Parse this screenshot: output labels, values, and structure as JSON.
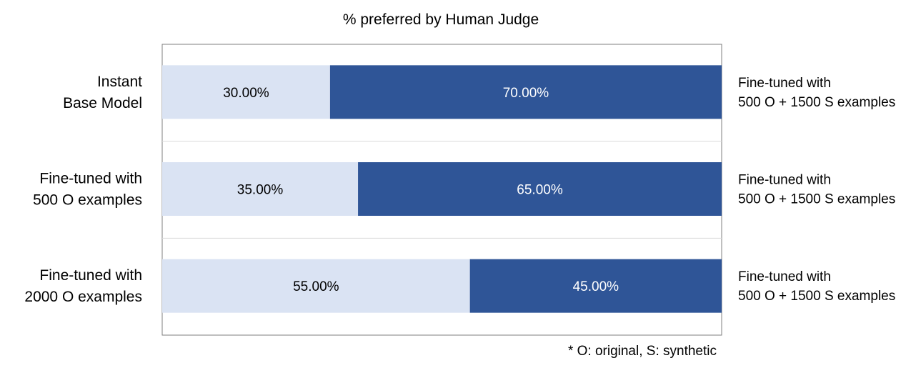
{
  "chart_data": {
    "type": "bar",
    "stacked": true,
    "orientation": "horizontal",
    "percent_scale": true,
    "title": "% preferred by Human Judge",
    "footnote": "* O: original, S: synthetic",
    "xlim": [
      0,
      100
    ],
    "grid": false,
    "categories": [
      [
        "Instant",
        "Base Model"
      ],
      [
        "Fine-tuned with",
        "500 O examples"
      ],
      [
        "Fine-tuned with",
        "2000 O examples"
      ]
    ],
    "right_labels": [
      [
        "Fine-tuned with",
        "500 O + 1500 S examples"
      ],
      [
        "Fine-tuned with",
        "500 O + 1500 S examples"
      ],
      [
        "Fine-tuned with",
        "500 O + 1500 S examples"
      ]
    ],
    "series": [
      {
        "values": [
          30.0,
          35.0,
          55.0
        ],
        "labels": [
          "30.00%",
          "35.00%",
          "55.00%"
        ],
        "color": "#dae3f3",
        "label_color": "#000000"
      },
      {
        "values": [
          70.0,
          65.0,
          45.0
        ],
        "labels": [
          "70.00%",
          "65.00%",
          "45.00%"
        ],
        "color": "#2f5597",
        "label_color": "#ffffff"
      }
    ],
    "colors": {
      "frame": "#7f7f7f",
      "separator": "#d9d9d9",
      "text": "#000000"
    }
  }
}
